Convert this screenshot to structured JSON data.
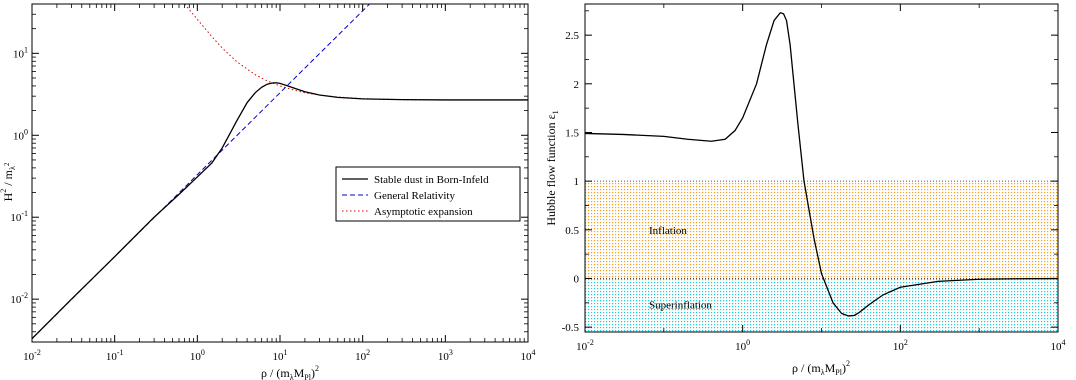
{
  "chart_data": [
    {
      "type": "line",
      "xscale": "log",
      "yscale": "log",
      "xlim": [
        0.01,
        10000
      ],
      "ylim": [
        0.003,
        40
      ],
      "xticks": [
        {
          "value": 0.01,
          "base": "10",
          "exp": "-2"
        },
        {
          "value": 0.1,
          "base": "10",
          "exp": "-1"
        },
        {
          "value": 1,
          "base": "10",
          "exp": "0"
        },
        {
          "value": 10,
          "base": "10",
          "exp": "1"
        },
        {
          "value": 100,
          "base": "10",
          "exp": "2"
        },
        {
          "value": 1000,
          "base": "10",
          "exp": "3"
        },
        {
          "value": 10000,
          "base": "10",
          "exp": "4"
        }
      ],
      "yticks": [
        {
          "value": 0.01,
          "base": "10",
          "exp": "-2"
        },
        {
          "value": 0.1,
          "base": "10",
          "exp": "-1"
        },
        {
          "value": 1,
          "base": "10",
          "exp": "0"
        },
        {
          "value": 10,
          "base": "10",
          "exp": "1"
        }
      ],
      "xlabel": {
        "main": "ρ / (m",
        "sub1": "λ",
        "mid": "M",
        "sub2": "Pl",
        "close": ")",
        "sup": "2"
      },
      "ylabel": {
        "main": "H",
        "sup": "2",
        "mid": " / m",
        "sub": "λ",
        "sub_sup": "2"
      },
      "legend": {
        "position": "center-right"
      },
      "series": [
        {
          "name": "Stable dust in Born-Infeld",
          "color": "#000000",
          "dash": "solid",
          "x": [
            0.01,
            0.03,
            0.1,
            0.3,
            0.6,
            1,
            1.5,
            2,
            3,
            4,
            5,
            6,
            7,
            8,
            9,
            10,
            12,
            15,
            20,
            30,
            50,
            100,
            300,
            1000,
            3000,
            10000
          ],
          "y": [
            0.0033,
            0.01,
            0.033,
            0.1,
            0.19,
            0.31,
            0.46,
            0.7,
            1.5,
            2.5,
            3.3,
            3.85,
            4.2,
            4.35,
            4.37,
            4.3,
            4.05,
            3.75,
            3.4,
            3.1,
            2.9,
            2.78,
            2.72,
            2.7,
            2.7,
            2.7
          ]
        },
        {
          "name": "General Relativity",
          "color": "#0000cc",
          "dash": "dashed",
          "x": [
            0.01,
            10000
          ],
          "y": [
            0.0033,
            3300
          ]
        },
        {
          "name": "Asymptotic expansion",
          "color": "#e00000",
          "dash": "dotted",
          "x": [
            0.7,
            1,
            1.5,
            2,
            3,
            5,
            7,
            10,
            15,
            20,
            30,
            50,
            100,
            300,
            1000,
            10000
          ],
          "y": [
            40,
            26,
            16,
            11.6,
            7.9,
            5.5,
            4.6,
            4.0,
            3.55,
            3.3,
            3.1,
            2.93,
            2.8,
            2.72,
            2.7,
            2.7
          ]
        }
      ]
    },
    {
      "type": "line",
      "xscale": "log",
      "yscale": "linear",
      "xlim": [
        0.01,
        10000
      ],
      "ylim": [
        -0.55,
        2.82
      ],
      "xticks": [
        {
          "value": 0.01,
          "base": "10",
          "exp": "-2"
        },
        {
          "value": 1,
          "base": "10",
          "exp": "0"
        },
        {
          "value": 100,
          "base": "10",
          "exp": "2"
        },
        {
          "value": 10000,
          "base": "10",
          "exp": "4"
        }
      ],
      "yticks": [
        {
          "value": -0.5,
          "label": "-0.5"
        },
        {
          "value": 0,
          "label": "0"
        },
        {
          "value": 0.5,
          "label": "0.5"
        },
        {
          "value": 1,
          "label": "1"
        },
        {
          "value": 1.5,
          "label": "1.5"
        },
        {
          "value": 2,
          "label": "2"
        },
        {
          "value": 2.5,
          "label": "2.5"
        }
      ],
      "xlabel": {
        "main": "ρ / (m",
        "sub1": "λ",
        "mid": "M",
        "sub2": "Pl",
        "close": ")",
        "sup": "2"
      },
      "ylabel": {
        "main": "Hubble flow function ε",
        "sub": "1"
      },
      "regions": [
        {
          "label": "Inflation",
          "from": 0,
          "to": 1,
          "color": "#f0a020"
        },
        {
          "label": "Superinflation",
          "from": -0.55,
          "to": 0,
          "color": "#20c8d8"
        }
      ],
      "series": [
        {
          "name": "",
          "color": "#000000",
          "dash": "solid",
          "x": [
            0.01,
            0.03,
            0.1,
            0.2,
            0.4,
            0.6,
            0.8,
            1,
            1.5,
            2,
            2.5,
            3,
            3.3,
            3.6,
            4,
            5,
            6,
            8,
            10,
            14,
            18,
            22,
            26,
            30,
            40,
            60,
            100,
            300,
            1000,
            3000,
            10000
          ],
          "y": [
            1.49,
            1.48,
            1.46,
            1.43,
            1.41,
            1.43,
            1.52,
            1.65,
            2.0,
            2.4,
            2.65,
            2.73,
            2.72,
            2.65,
            2.4,
            1.6,
            1.0,
            0.42,
            0.05,
            -0.25,
            -0.36,
            -0.385,
            -0.38,
            -0.35,
            -0.27,
            -0.17,
            -0.09,
            -0.03,
            -0.008,
            -0.003,
            -0.001
          ]
        }
      ]
    }
  ]
}
